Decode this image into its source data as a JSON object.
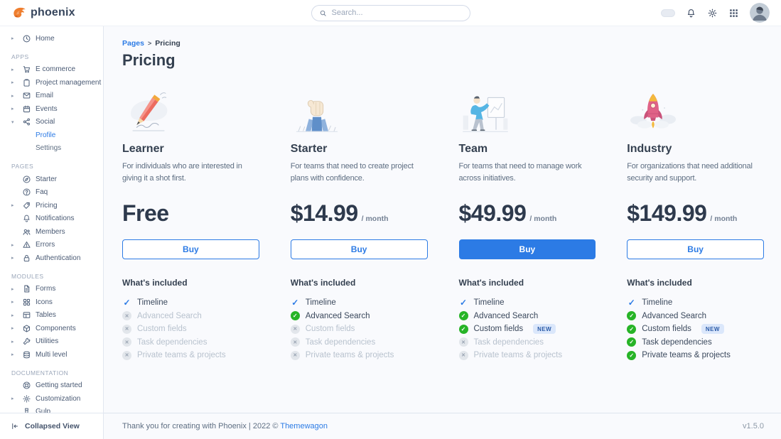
{
  "colors": {
    "primary": "#2c7be5",
    "success": "#27b427",
    "heading": "#344050",
    "muted": "#748194",
    "disabled_text": "#b8c2ce"
  },
  "navbar": {
    "brand": "phoenix",
    "search_placeholder": "Search..."
  },
  "sidebar": {
    "sections": [
      {
        "label": "",
        "items": [
          {
            "label": "Home",
            "icon": "clock",
            "caret": true
          }
        ]
      },
      {
        "label": "APPS",
        "items": [
          {
            "label": "E commerce",
            "icon": "cart",
            "caret": true
          },
          {
            "label": "Project management",
            "icon": "clipboard",
            "caret": true
          },
          {
            "label": "Email",
            "icon": "envelope",
            "caret": true
          },
          {
            "label": "Events",
            "icon": "calendar",
            "caret": true
          },
          {
            "label": "Social",
            "icon": "share",
            "caret": true,
            "expanded": true,
            "children": [
              {
                "label": "Profile",
                "active": true
              },
              {
                "label": "Settings"
              }
            ]
          }
        ]
      },
      {
        "label": "PAGES",
        "items": [
          {
            "label": "Starter",
            "icon": "compass"
          },
          {
            "label": "Faq",
            "icon": "question"
          },
          {
            "label": "Pricing",
            "icon": "tag",
            "caret": true
          },
          {
            "label": "Notifications",
            "icon": "bell"
          },
          {
            "label": "Members",
            "icon": "users"
          },
          {
            "label": "Errors",
            "icon": "warning",
            "caret": true
          },
          {
            "label": "Authentication",
            "icon": "lock",
            "caret": true
          }
        ]
      },
      {
        "label": "MODULES",
        "items": [
          {
            "label": "Forms",
            "icon": "file",
            "caret": true
          },
          {
            "label": "Icons",
            "icon": "grid",
            "caret": true
          },
          {
            "label": "Tables",
            "icon": "table",
            "caret": true
          },
          {
            "label": "Components",
            "icon": "cube",
            "caret": true
          },
          {
            "label": "Utilities",
            "icon": "wrench",
            "caret": true
          },
          {
            "label": "Multi level",
            "icon": "layers",
            "caret": true
          }
        ]
      },
      {
        "label": "DOCUMENTATION",
        "items": [
          {
            "label": "Getting started",
            "icon": "lifering"
          },
          {
            "label": "Customization",
            "icon": "gear",
            "caret": true
          },
          {
            "label": "Gulp",
            "icon": "bottle"
          }
        ]
      }
    ],
    "collapse_label": "Collapsed View"
  },
  "page": {
    "breadcrumb": {
      "parent": "Pages",
      "separator": ">",
      "current": "Pricing"
    },
    "title": "Pricing",
    "included_heading": "What's included"
  },
  "plans": [
    {
      "name": "Learner",
      "illustration": "learner",
      "description": "For individuals who are interested in giving it a shot first.",
      "price": "Free",
      "period": "",
      "buy_label": "Buy",
      "buy_variant": "outline",
      "features": [
        {
          "label": "Timeline",
          "status": "basic"
        },
        {
          "label": "Advanced Search",
          "status": "excluded"
        },
        {
          "label": "Custom fields",
          "status": "excluded"
        },
        {
          "label": "Task dependencies",
          "status": "excluded"
        },
        {
          "label": "Private teams & projects",
          "status": "excluded"
        }
      ]
    },
    {
      "name": "Starter",
      "illustration": "starter",
      "description": "For teams that need to create project plans with confidence.",
      "price": "$14.99",
      "period": "/ month",
      "buy_label": "Buy",
      "buy_variant": "outline",
      "features": [
        {
          "label": "Timeline",
          "status": "basic"
        },
        {
          "label": "Advanced Search",
          "status": "included"
        },
        {
          "label": "Custom fields",
          "status": "excluded"
        },
        {
          "label": "Task dependencies",
          "status": "excluded"
        },
        {
          "label": "Private teams & projects",
          "status": "excluded"
        }
      ]
    },
    {
      "name": "Team",
      "illustration": "team",
      "description": "For teams that need to manage work across initiatives.",
      "price": "$49.99",
      "period": "/ month",
      "buy_label": "Buy",
      "buy_variant": "solid",
      "features": [
        {
          "label": "Timeline",
          "status": "basic"
        },
        {
          "label": "Advanced Search",
          "status": "included"
        },
        {
          "label": "Custom fields",
          "status": "included",
          "badge": "NEW"
        },
        {
          "label": "Task dependencies",
          "status": "excluded"
        },
        {
          "label": "Private teams & projects",
          "status": "excluded"
        }
      ]
    },
    {
      "name": "Industry",
      "illustration": "industry",
      "description": "For organizations that need additional security and support.",
      "price": "$149.99",
      "period": "/ month",
      "buy_label": "Buy",
      "buy_variant": "outline",
      "features": [
        {
          "label": "Timeline",
          "status": "basic"
        },
        {
          "label": "Advanced Search",
          "status": "included"
        },
        {
          "label": "Custom fields",
          "status": "included",
          "badge": "NEW"
        },
        {
          "label": "Task dependencies",
          "status": "included"
        },
        {
          "label": "Private teams & projects",
          "status": "included"
        }
      ]
    }
  ],
  "footer": {
    "thanks": "Thank you for creating with Phoenix | 2022 © ",
    "link": "Themewagon",
    "version": "v1.5.0"
  }
}
